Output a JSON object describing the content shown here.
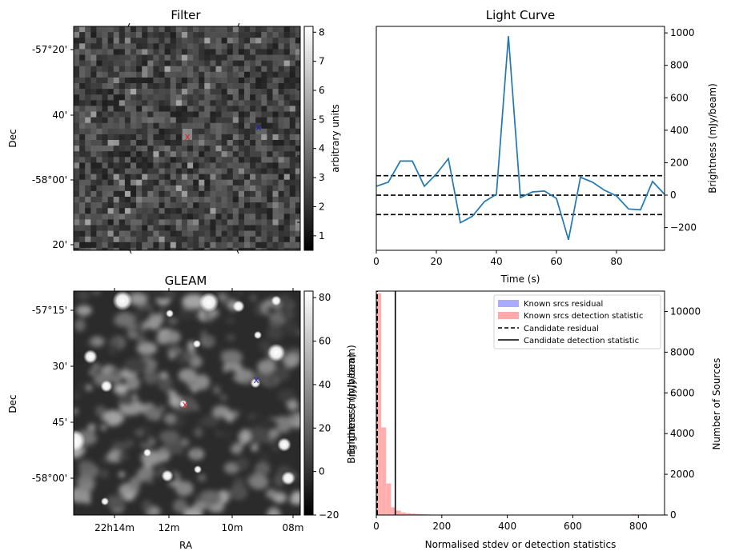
{
  "panels": {
    "filter": {
      "title": "Filter",
      "ylabel": "Dec",
      "yticks": [
        "-57°20'",
        "40'",
        "-58°00'",
        "20'"
      ],
      "colorbar": {
        "label": "arbitrary units",
        "ticks": [
          "8",
          "7",
          "6",
          "5",
          "4",
          "3",
          "2",
          "1"
        ],
        "range": [
          0.5,
          8.2
        ]
      },
      "markers": [
        {
          "label": "x",
          "color": "#d62728"
        },
        {
          "label": "x",
          "color": "#1f1fbf"
        }
      ]
    },
    "gleam": {
      "title": "GLEAM",
      "ylabel": "Dec",
      "xlabel": "RA",
      "yticks": [
        "-57°15'",
        "30'",
        "45'",
        "-58°00'"
      ],
      "xticks": [
        "22h14m",
        "12m",
        "10m",
        "08m"
      ],
      "colorbar": {
        "label": "Brightness (mJy/beam)",
        "ticks": [
          "80",
          "60",
          "40",
          "20",
          "0",
          "−20"
        ],
        "range": [
          -20,
          83
        ]
      },
      "markers": [
        {
          "label": "x",
          "color": "#d62728"
        },
        {
          "label": "x",
          "color": "#1f1fbf"
        }
      ]
    }
  },
  "chart_data": [
    {
      "type": "line",
      "title": "Light Curve",
      "xlabel": "Time (s)",
      "ylabel": "Brightness (mJy/beam)",
      "xlim": [
        0,
        96
      ],
      "ylim": [
        -340,
        1040
      ],
      "xticks": [
        0,
        20,
        40,
        60,
        80
      ],
      "yticks": [
        -200,
        0,
        200,
        400,
        600,
        800,
        1000
      ],
      "series": [
        {
          "color": "#1f77b4",
          "x": [
            0,
            4,
            8,
            12,
            16,
            20,
            24,
            28,
            32,
            36,
            40,
            44,
            48,
            52,
            56,
            60,
            64,
            68,
            72,
            76,
            80,
            84,
            88,
            92,
            96
          ],
          "y": [
            55,
            80,
            210,
            210,
            55,
            130,
            225,
            -170,
            -130,
            -40,
            5,
            980,
            -15,
            20,
            25,
            -20,
            -275,
            110,
            80,
            30,
            -5,
            -85,
            -90,
            85,
            5
          ]
        }
      ],
      "hlines": [
        {
          "y": 120,
          "style": "dashed"
        },
        {
          "y": 0,
          "style": "dashed"
        },
        {
          "y": -120,
          "style": "dashed"
        }
      ]
    },
    {
      "type": "bar",
      "xlabel": "Normalised stdev or detection statistics",
      "ylabel_left": "Brightness (mJy/beam)",
      "ylabel_right": "Number of Sources",
      "xlim": [
        0,
        880
      ],
      "ylim": [
        0,
        11000
      ],
      "xticks": [
        0,
        200,
        400,
        600,
        800
      ],
      "yticks": [
        0,
        2000,
        4000,
        6000,
        8000,
        10000
      ],
      "legend": {
        "position": "upper-right",
        "entries": [
          {
            "label": "Known srcs residual",
            "color": "#aaaaff",
            "kind": "patch"
          },
          {
            "label": "Known srcs detection statistic",
            "color": "#ffaaaa",
            "kind": "patch"
          },
          {
            "label": "Candidate residual",
            "color": "#000000",
            "kind": "dashed"
          },
          {
            "label": "Candidate detection statistic",
            "color": "#000000",
            "kind": "solid"
          }
        ]
      },
      "series": [
        {
          "name": "Known srcs detection statistic",
          "color": "#ffaaaa",
          "bin_width": 15,
          "bin_starts": [
            0,
            15,
            30,
            45,
            60,
            75,
            90,
            105,
            120,
            135,
            150,
            165,
            180,
            200,
            400,
            500,
            780,
            810
          ],
          "values": [
            10900,
            4300,
            1550,
            380,
            220,
            130,
            90,
            70,
            50,
            40,
            30,
            20,
            15,
            10,
            10,
            10,
            40,
            30
          ]
        },
        {
          "name": "Known srcs residual",
          "color": "#aaaaff",
          "bin_width": 3,
          "bin_starts": [
            0,
            3
          ],
          "values": [
            600,
            60
          ]
        }
      ],
      "vlines": [
        {
          "x": 3,
          "style": "dashed",
          "label": "Candidate residual"
        },
        {
          "x": 58,
          "style": "solid",
          "label": "Candidate detection statistic"
        }
      ]
    }
  ]
}
